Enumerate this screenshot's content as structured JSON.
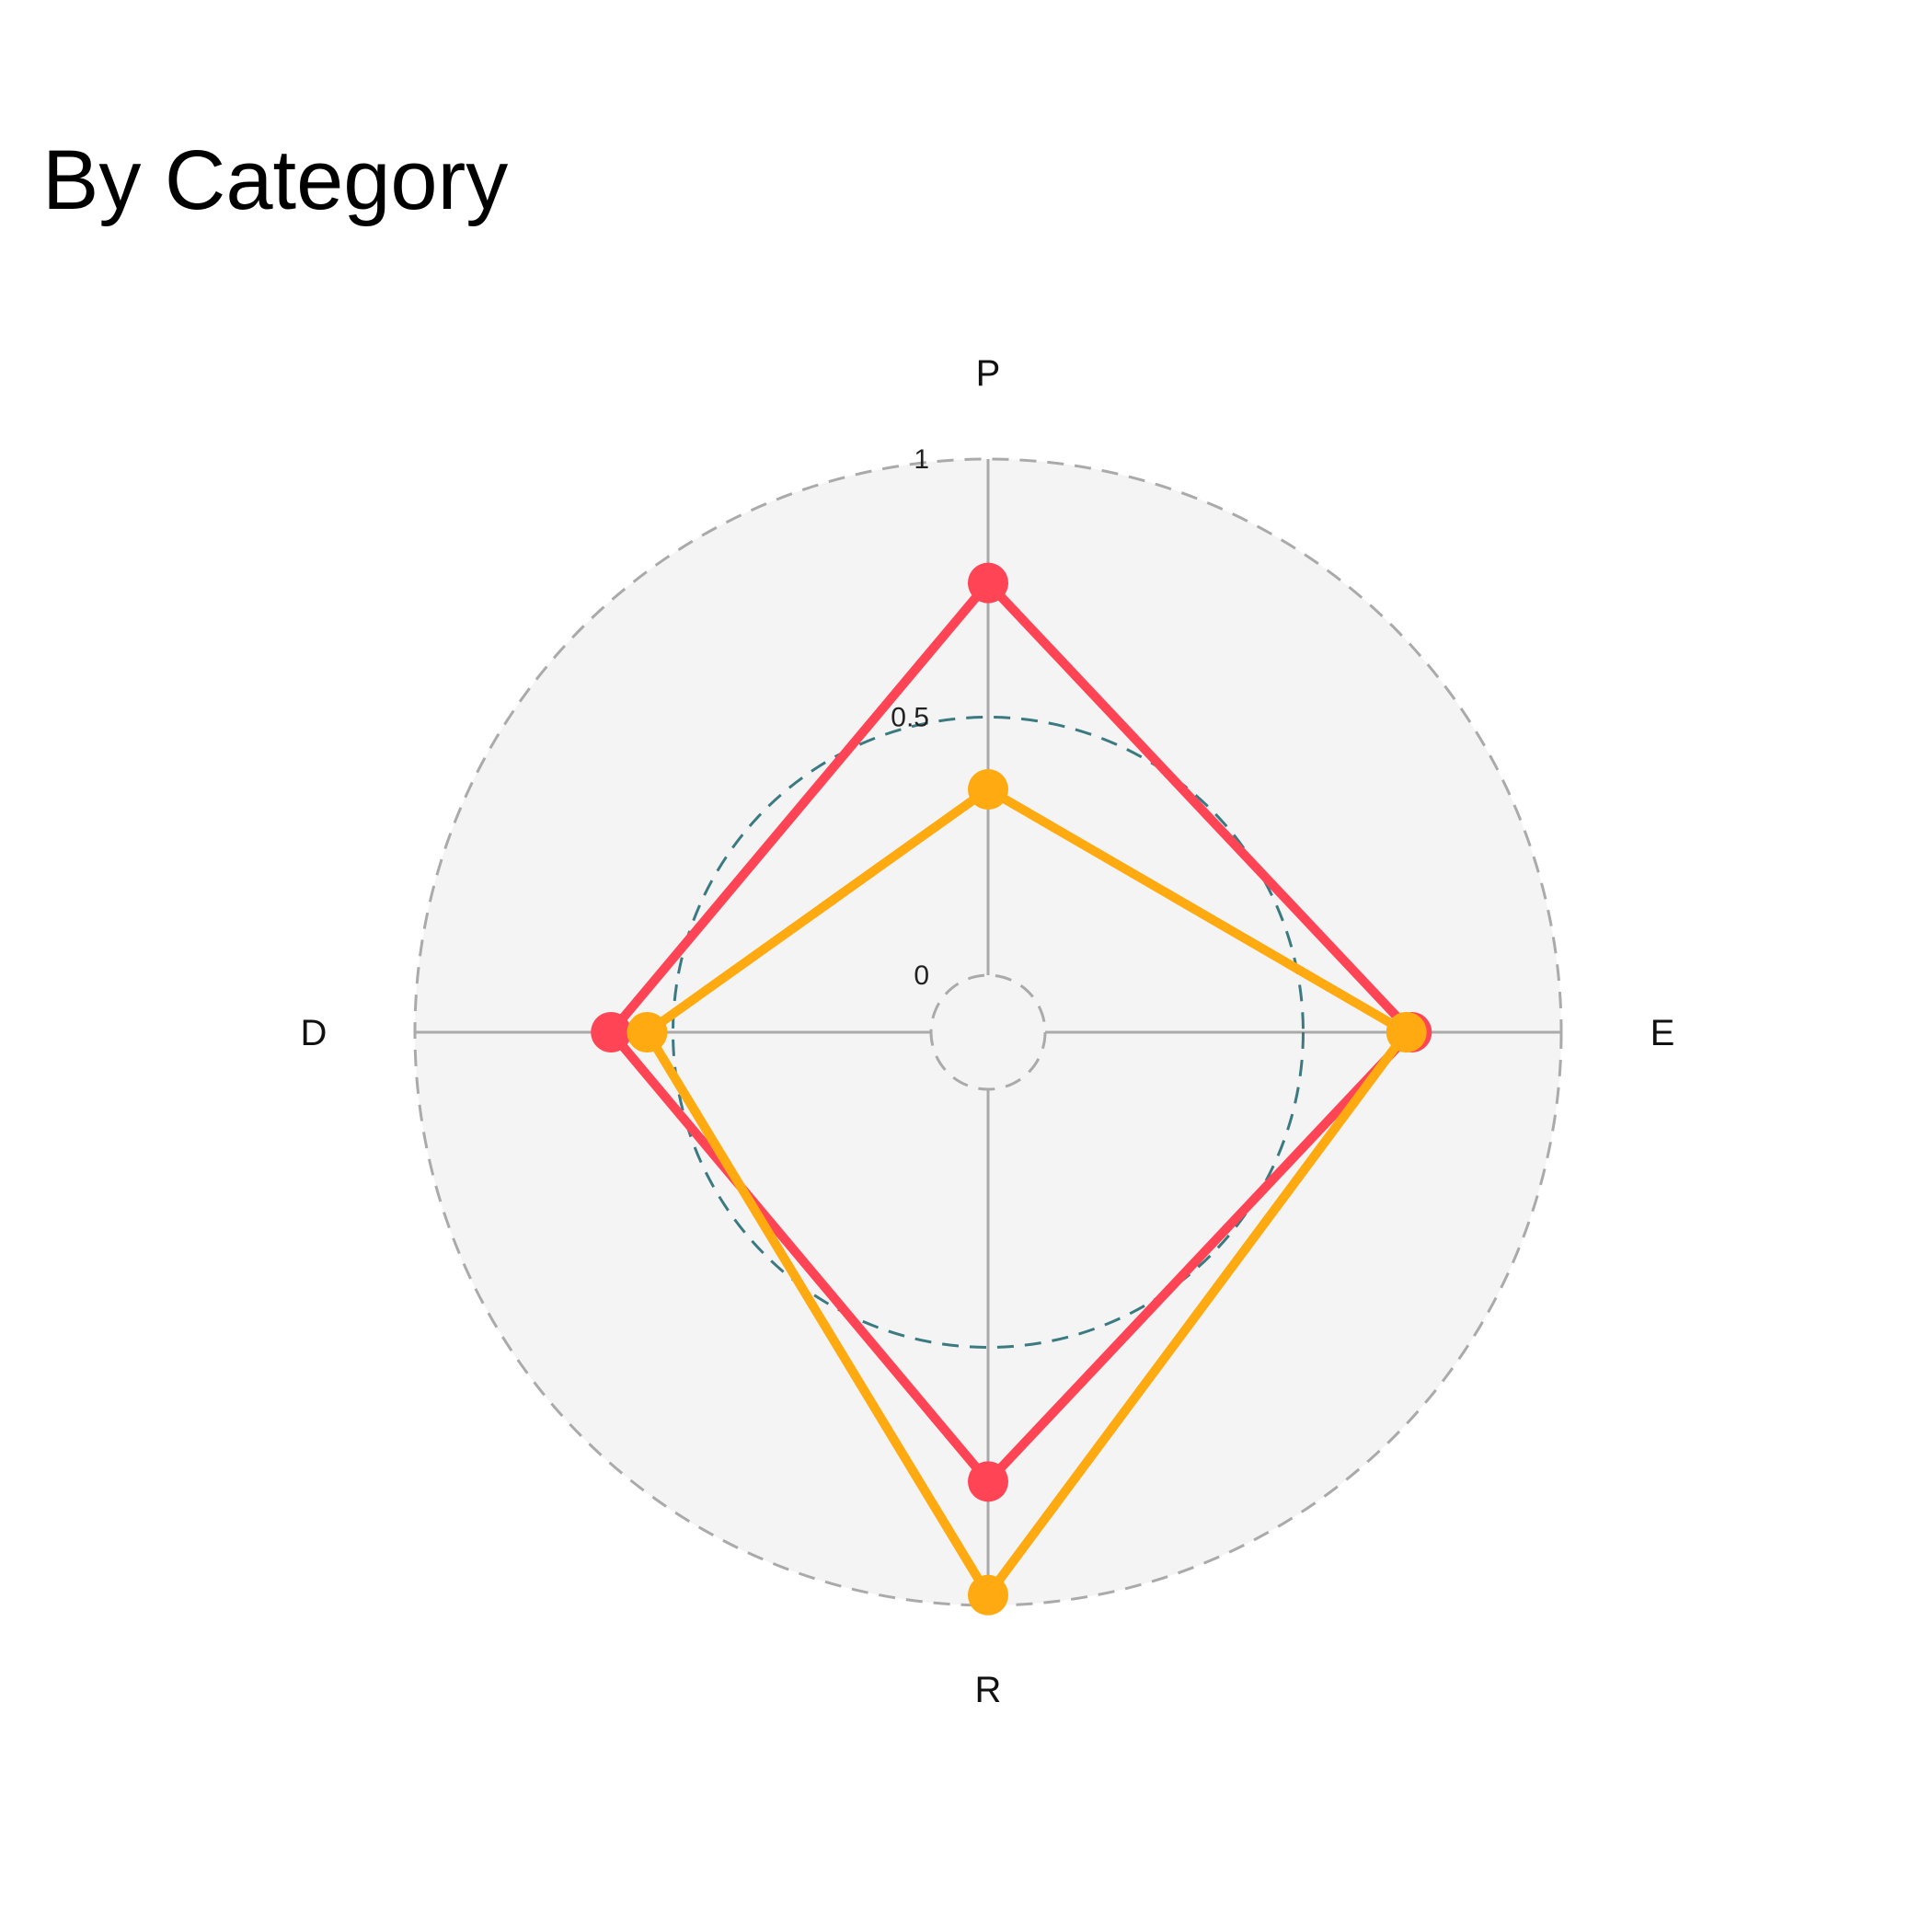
{
  "chart_data": {
    "type": "radar",
    "title": "By Category",
    "axes": [
      "P",
      "E",
      "R",
      "D"
    ],
    "rlim": [
      0,
      1
    ],
    "ticks": [
      "0",
      "0.5",
      "1"
    ],
    "tick_values": [
      0,
      0.5,
      1
    ],
    "grid": true,
    "series": [
      {
        "values": [
          0.76,
          0.71,
          0.76,
          0.62
        ],
        "color": "#FF4455"
      },
      {
        "values": [
          0.36,
          0.7,
          0.98,
          0.55
        ],
        "color": "#FFAA11"
      }
    ],
    "colors": {
      "background_disc": "#F4F4F4",
      "grid": "#AAAAAA",
      "mid_ring": "#3A7A80"
    }
  }
}
